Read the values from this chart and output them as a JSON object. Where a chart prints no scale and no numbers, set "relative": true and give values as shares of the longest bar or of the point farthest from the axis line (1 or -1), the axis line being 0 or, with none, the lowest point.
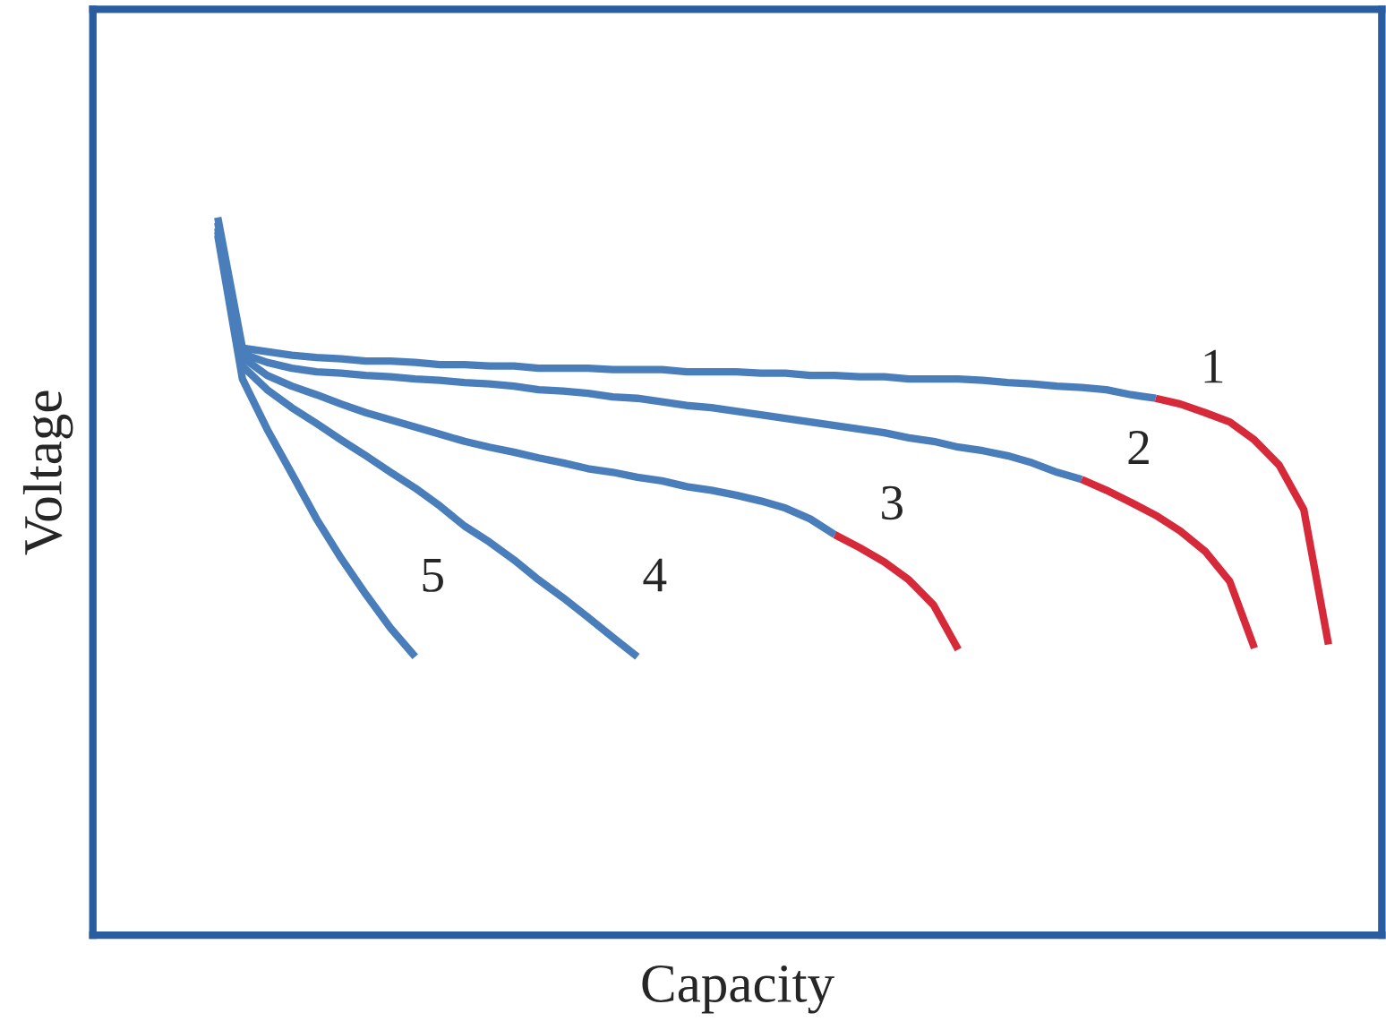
{
  "chart_data": {
    "type": "line",
    "relative": true,
    "xlabel": "Capacity",
    "ylabel": "Voltage",
    "marker": "none",
    "line_style": "solid",
    "categories": [
      null,
      null,
      null,
      null,
      null,
      null,
      null,
      null,
      null,
      null,
      null,
      null,
      null,
      null,
      null,
      null,
      null,
      null,
      null,
      null,
      null,
      null,
      null,
      null,
      null,
      null,
      null,
      null,
      null,
      null,
      null,
      null,
      null,
      null,
      null,
      null,
      null,
      null,
      null,
      null,
      null,
      null,
      null,
      null,
      null,
      null
    ],
    "series": [
      {
        "color": "#4a7ebb",
        "values": [
          1.0,
          0.818,
          0.813,
          0.808,
          0.805,
          0.803,
          0.8,
          0.8,
          0.798,
          0.795,
          0.795,
          0.793,
          0.793,
          0.79,
          0.79,
          0.79,
          0.788,
          0.788,
          0.788,
          0.785,
          0.785,
          0.785,
          0.783,
          0.783,
          0.78,
          0.78,
          0.778,
          0.778,
          0.775,
          0.775,
          0.775,
          0.773,
          0.77,
          0.768,
          0.765,
          0.763,
          0.76,
          0.753,
          0.748,
          null,
          null,
          null,
          null,
          null,
          null,
          null
        ]
      },
      {
        "name": "1",
        "color": "#d62a3a",
        "values": [
          null,
          null,
          null,
          null,
          null,
          null,
          null,
          null,
          null,
          null,
          null,
          null,
          null,
          null,
          null,
          null,
          null,
          null,
          null,
          null,
          null,
          null,
          null,
          null,
          null,
          null,
          null,
          null,
          null,
          null,
          null,
          null,
          null,
          null,
          null,
          null,
          null,
          null,
          0.748,
          0.74,
          0.728,
          0.715,
          0.69,
          0.655,
          0.593,
          0.405
        ]
      },
      {
        "color": "#4a7ebb",
        "values": [
          0.993,
          0.81,
          0.798,
          0.79,
          0.785,
          0.783,
          0.78,
          0.778,
          0.775,
          0.773,
          0.77,
          0.768,
          0.765,
          0.76,
          0.758,
          0.755,
          0.75,
          0.748,
          0.743,
          0.738,
          0.735,
          0.73,
          0.725,
          0.72,
          0.715,
          0.71,
          0.705,
          0.7,
          0.693,
          0.688,
          0.68,
          0.675,
          0.668,
          0.658,
          0.645,
          0.635,
          null,
          null,
          null,
          null,
          null,
          null,
          null,
          null,
          null,
          null
        ]
      },
      {
        "name": "2",
        "color": "#d62a3a",
        "values": [
          null,
          null,
          null,
          null,
          null,
          null,
          null,
          null,
          null,
          null,
          null,
          null,
          null,
          null,
          null,
          null,
          null,
          null,
          null,
          null,
          null,
          null,
          null,
          null,
          null,
          null,
          null,
          null,
          null,
          null,
          null,
          null,
          null,
          null,
          null,
          0.635,
          0.62,
          0.603,
          0.585,
          0.563,
          0.535,
          0.493,
          0.4,
          null,
          null,
          null
        ]
      },
      {
        "color": "#4a7ebb",
        "values": [
          0.985,
          0.805,
          0.78,
          0.765,
          0.753,
          0.74,
          0.728,
          0.718,
          0.708,
          0.698,
          0.688,
          0.68,
          0.673,
          0.665,
          0.658,
          0.65,
          0.645,
          0.638,
          0.633,
          0.625,
          0.62,
          0.613,
          0.605,
          0.595,
          0.58,
          0.558,
          null,
          null,
          null,
          null,
          null,
          null,
          null,
          null,
          null,
          null,
          null,
          null,
          null,
          null,
          null,
          null,
          null,
          null,
          null,
          null
        ]
      },
      {
        "name": "3",
        "color": "#d62a3a",
        "values": [
          null,
          null,
          null,
          null,
          null,
          null,
          null,
          null,
          null,
          null,
          null,
          null,
          null,
          null,
          null,
          null,
          null,
          null,
          null,
          null,
          null,
          null,
          null,
          null,
          null,
          0.558,
          0.54,
          0.52,
          0.495,
          0.46,
          0.398,
          null,
          null,
          null,
          null,
          null,
          null,
          null,
          null,
          null,
          null,
          null,
          null,
          null,
          null,
          null
        ]
      },
      {
        "name": "4",
        "color": "#4a7ebb",
        "values": [
          0.98,
          0.793,
          0.76,
          0.735,
          0.713,
          0.69,
          0.668,
          0.645,
          0.623,
          0.598,
          0.57,
          0.548,
          0.523,
          0.495,
          0.47,
          0.443,
          0.415,
          0.388,
          null,
          null,
          null,
          null,
          null,
          null,
          null,
          null,
          null,
          null,
          null,
          null,
          null,
          null,
          null,
          null,
          null,
          null,
          null,
          null,
          null,
          null,
          null,
          null,
          null,
          null,
          null,
          null
        ]
      },
      {
        "name": "5",
        "color": "#4a7ebb",
        "values": [
          0.975,
          0.775,
          0.705,
          0.643,
          0.58,
          0.525,
          0.475,
          0.428,
          0.388,
          null,
          null,
          null,
          null,
          null,
          null,
          null,
          null,
          null,
          null,
          null,
          null,
          null,
          null,
          null,
          null,
          null,
          null,
          null,
          null,
          null,
          null,
          null,
          null,
          null,
          null,
          null,
          null,
          null,
          null,
          null,
          null,
          null,
          null,
          null,
          null,
          null
        ]
      }
    ]
  }
}
